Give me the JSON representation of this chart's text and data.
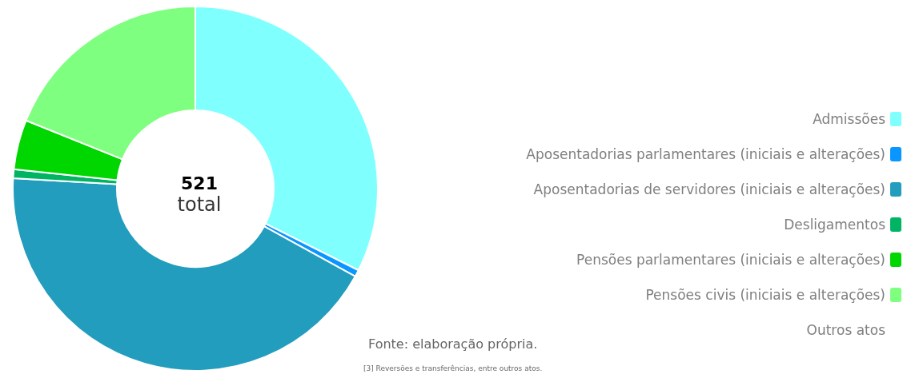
{
  "chart_data": {
    "type": "donut",
    "title": "521",
    "subtitle": "total",
    "categories": [
      "Admissões",
      "Aposentadorias parlamentares (iniciais e alterações)",
      "Aposentadorias de servidores (iniciais e alterações)",
      "Desligamentos",
      "Pensões parlamentares (iniciais e alterações)",
      "Pensões civis (iniciais e alterações)",
      "Outros atos"
    ],
    "values": [
      32.4,
      0.6,
      42.9,
      0.8,
      4.4,
      18.9,
      0
    ],
    "colors": [
      "#80ffff",
      "#0a96ff",
      "#229dbd",
      "#00b464",
      "#00d600",
      "#7fff7f",
      "#ffffff"
    ],
    "legend": "right",
    "annotations": [
      "Fonte: elaboração própria.",
      "[3] Reversões e transferências, entre outros atos."
    ]
  }
}
